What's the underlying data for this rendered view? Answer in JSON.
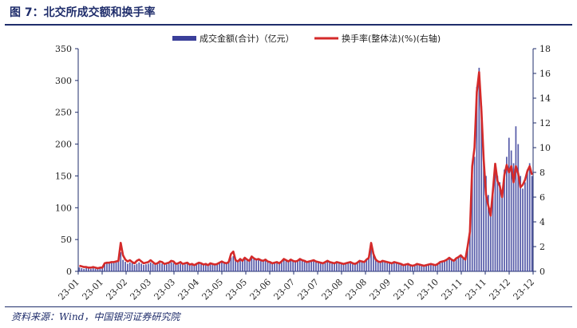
{
  "figure_title": "图 7：北交所成交额和换手率",
  "source": "资料来源：Wind，中国银河证券研究院",
  "colors": {
    "bar": "#3a3f9a",
    "line": "#d42a2a",
    "axis": "#1f2d6b"
  },
  "chart_data": {
    "type": "bar",
    "title": "",
    "legend_position": "top-center",
    "grid": false,
    "y_left": {
      "min": 0,
      "max": 350,
      "ticks": [
        0,
        50,
        100,
        150,
        200,
        250,
        300,
        350
      ]
    },
    "y_right": {
      "min": 0,
      "max": 18,
      "ticks": [
        0,
        2,
        4,
        6,
        8,
        10,
        12,
        14,
        16,
        18
      ]
    },
    "x_tick_labels": [
      "23-01",
      "23-01",
      "23-02",
      "23-03",
      "23-03",
      "23-04",
      "23-05",
      "23-05",
      "23-06",
      "23-07",
      "23-07",
      "23-08",
      "23-08",
      "23-09",
      "23-10",
      "23-10",
      "23-11",
      "23-11",
      "23-12",
      "23-12"
    ],
    "series": [
      {
        "name": "成交金额(合计)（亿元）",
        "type": "bar",
        "axis": "left",
        "values": [
          6,
          5,
          4,
          5,
          6,
          4,
          5,
          4,
          5,
          6,
          5,
          12,
          15,
          13,
          14,
          15,
          14,
          16,
          30,
          18,
          15,
          12,
          14,
          13,
          10,
          12,
          14,
          12,
          10,
          11,
          12,
          14,
          12,
          10,
          11,
          13,
          12,
          10,
          11,
          12,
          14,
          13,
          10,
          11,
          12,
          10,
          11,
          12,
          10,
          11,
          10,
          12,
          14,
          12,
          11,
          12,
          10,
          13,
          12,
          11,
          12,
          14,
          15,
          13,
          12,
          14,
          22,
          24,
          16,
          15,
          18,
          16,
          20,
          18,
          16,
          22,
          20,
          18,
          19,
          17,
          16,
          18,
          15,
          14,
          12,
          13,
          14,
          12,
          15,
          18,
          16,
          15,
          17,
          16,
          15,
          16,
          18,
          17,
          16,
          14,
          15,
          16,
          17,
          15,
          14,
          13,
          12,
          14,
          16,
          14,
          13,
          12,
          14,
          13,
          12,
          11,
          12,
          13,
          14,
          12,
          11,
          13,
          16,
          15,
          14,
          18,
          20,
          40,
          25,
          18,
          15,
          14,
          16,
          15,
          14,
          13,
          12,
          14,
          13,
          12,
          11,
          10,
          11,
          12,
          10,
          9,
          10,
          12,
          11,
          10,
          9,
          10,
          11,
          12,
          11,
          10,
          12,
          14,
          15,
          16,
          18,
          20,
          18,
          16,
          20,
          22,
          24,
          20,
          18,
          40,
          60,
          150,
          180,
          290,
          320,
          260,
          180,
          150,
          120,
          100,
          130,
          170,
          150,
          140,
          120,
          160,
          180,
          210,
          190,
          170,
          228,
          200,
          150,
          130,
          140,
          160,
          170,
          150
        ]
      },
      {
        "name": "换手率(整体法)(%)(右轴)",
        "type": "line",
        "axis": "right",
        "values": [
          0.45,
          0.4,
          0.35,
          0.35,
          0.3,
          0.3,
          0.35,
          0.3,
          0.25,
          0.3,
          0.3,
          0.65,
          0.7,
          0.7,
          0.75,
          0.75,
          0.8,
          0.85,
          2.3,
          1.3,
          0.95,
          0.8,
          0.9,
          0.75,
          0.65,
          0.85,
          0.95,
          0.8,
          0.65,
          0.7,
          0.75,
          0.9,
          0.75,
          0.6,
          0.65,
          0.8,
          0.75,
          0.6,
          0.65,
          0.7,
          0.85,
          0.8,
          0.6,
          0.65,
          0.75,
          0.6,
          0.65,
          0.7,
          0.55,
          0.6,
          0.5,
          0.6,
          0.7,
          0.65,
          0.55,
          0.6,
          0.5,
          0.65,
          0.6,
          0.55,
          0.6,
          0.7,
          0.8,
          0.7,
          0.65,
          0.75,
          1.4,
          1.6,
          0.9,
          0.8,
          1.0,
          0.85,
          1.1,
          0.95,
          0.85,
          1.2,
          1.05,
          0.95,
          1.0,
          0.9,
          0.85,
          0.95,
          0.8,
          0.75,
          0.65,
          0.7,
          0.75,
          0.65,
          0.8,
          1.0,
          0.9,
          0.8,
          0.95,
          0.85,
          0.8,
          0.85,
          1.0,
          0.9,
          0.85,
          0.75,
          0.8,
          0.85,
          0.9,
          0.8,
          0.75,
          0.7,
          0.65,
          0.75,
          0.85,
          0.75,
          0.7,
          0.65,
          0.75,
          0.7,
          0.65,
          0.6,
          0.65,
          0.7,
          0.75,
          0.65,
          0.6,
          0.7,
          0.85,
          0.8,
          0.75,
          0.95,
          1.1,
          2.3,
          1.4,
          0.95,
          0.8,
          0.75,
          0.85,
          0.8,
          0.75,
          0.7,
          0.65,
          0.75,
          0.7,
          0.65,
          0.6,
          0.5,
          0.55,
          0.6,
          0.5,
          0.45,
          0.5,
          0.6,
          0.55,
          0.5,
          0.45,
          0.5,
          0.55,
          0.6,
          0.55,
          0.5,
          0.6,
          0.75,
          0.8,
          0.85,
          0.95,
          1.1,
          0.95,
          0.85,
          1.05,
          1.15,
          1.3,
          1.1,
          0.95,
          2.0,
          3.2,
          8.5,
          10.0,
          14.5,
          16.1,
          13.0,
          9.0,
          6.2,
          5.3,
          4.5,
          6.5,
          8.7,
          7.3,
          6.9,
          6.0,
          7.8,
          8.6,
          8.0,
          8.5,
          7.2,
          8.5,
          7.9,
          6.8,
          7.0,
          7.4,
          8.1,
          8.5,
          7.8
        ]
      }
    ]
  }
}
